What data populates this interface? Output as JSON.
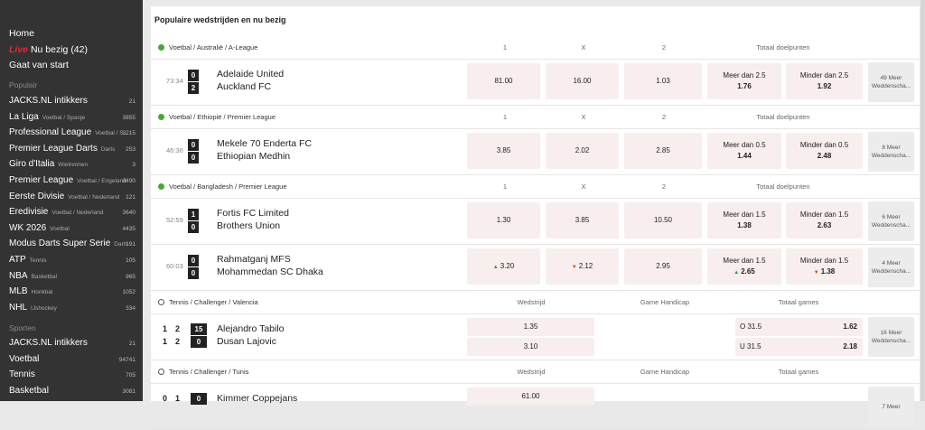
{
  "sidebar": {
    "home": "Home",
    "live": {
      "badge": "Live",
      "label": "Nu bezig",
      "count": "(42)"
    },
    "upcoming": "Gaat van start",
    "popular": {
      "title": "Populair",
      "items": [
        {
          "name": "JACKS.NL intikkers",
          "count": 21
        },
        {
          "name": "La Liga",
          "sub": "Voetbal / Spanje",
          "count": 3855
        },
        {
          "name": "Professional League",
          "sub": "Voetbal / S...",
          "count": 3215
        },
        {
          "name": "Premier League Darts",
          "sub": "Darts",
          "count": 253
        },
        {
          "name": "Giro d'Italia",
          "sub": "Wielrennen",
          "count": 3
        },
        {
          "name": "Premier League",
          "sub": "Voetbal / Engeland",
          "count": 3490
        },
        {
          "name": "Eerste Divisie",
          "sub": "Voetbal / Nederland",
          "count": 121
        },
        {
          "name": "Eredivisie",
          "sub": "Voetbal / Nederland",
          "count": 3640
        },
        {
          "name": "WK 2026",
          "sub": "Voetbal",
          "count": 4435
        },
        {
          "name": "Modus Darts Super Serie",
          "sub": "Darts",
          "count": 191
        },
        {
          "name": "ATP",
          "sub": "Tennis",
          "count": 105
        },
        {
          "name": "NBA",
          "sub": "Basketbal",
          "count": 965
        },
        {
          "name": "MLB",
          "sub": "Honkbal",
          "count": 1052
        },
        {
          "name": "NHL",
          "sub": "IJshockey",
          "count": 334
        }
      ]
    },
    "sports": {
      "title": "Sporten",
      "items": [
        {
          "name": "JACKS.NL intikkers",
          "count": 21
        },
        {
          "name": "Voetbal",
          "count": 94741
        },
        {
          "name": "Tennis",
          "count": 705
        },
        {
          "name": "Basketbal",
          "count": 3081
        }
      ]
    }
  },
  "main": {
    "title": "Populaire wedstrijden en nu bezig",
    "groups": [
      {
        "path": "Voetbal / Australië / A-League",
        "columns": [
          "1",
          "X",
          "2",
          "Totaal doelpunten"
        ],
        "events": [
          {
            "time": "73:34",
            "score": [
              0,
              2
            ],
            "teams": [
              "Adelaide United",
              "Auckland FC"
            ],
            "odds": [
              {
                "odd": "81.00"
              },
              {
                "odd": "16.00"
              },
              {
                "odd": "1.03"
              }
            ],
            "totals": [
              {
                "label": "Meer dan 2.5",
                "odd": "1.76"
              },
              {
                "label": "Minder dan 2.5",
                "odd": "1.92"
              }
            ],
            "more": "49 Meer Weddenscha..."
          }
        ]
      },
      {
        "path": "Voetbal / Ethiopië / Premier League",
        "columns": [
          "1",
          "X",
          "2",
          "Totaal doelpunten"
        ],
        "events": [
          {
            "time": "46:36",
            "score": [
              0,
              0
            ],
            "teams": [
              "Mekele 70 Enderta FC",
              "Ethiopian Medhin"
            ],
            "odds": [
              {
                "odd": "3.85"
              },
              {
                "odd": "2.02"
              },
              {
                "odd": "2.85"
              }
            ],
            "totals": [
              {
                "label": "Meer dan 0.5",
                "odd": "1.44"
              },
              {
                "label": "Minder dan 0.5",
                "odd": "2.48"
              }
            ],
            "more": "8 Meer Weddenscha..."
          }
        ]
      },
      {
        "path": "Voetbal / Bangladesh / Premier League",
        "columns": [
          "1",
          "X",
          "2",
          "Totaal doelpunten"
        ],
        "events": [
          {
            "time": "52:59",
            "score": [
              1,
              0
            ],
            "teams": [
              "Fortis FC Limited",
              "Brothers Union"
            ],
            "odds": [
              {
                "odd": "1.30"
              },
              {
                "odd": "3.85"
              },
              {
                "odd": "10.50"
              }
            ],
            "totals": [
              {
                "label": "Meer dan 1.5",
                "odd": "1.38"
              },
              {
                "label": "Minder dan 1.5",
                "odd": "2.63"
              }
            ],
            "more": "6 Meer Weddenscha..."
          },
          {
            "time": "60:03",
            "score": [
              0,
              0
            ],
            "teams": [
              "Rahmatganj MFS",
              "Mohammedan SC Dhaka"
            ],
            "odds": [
              {
                "odd": "3.20",
                "trend": "up"
              },
              {
                "odd": "2.12",
                "trend": "down"
              },
              {
                "odd": "2.95"
              }
            ],
            "totals": [
              {
                "label": "Meer dan 1.5",
                "odd": "2.65",
                "trend": "up"
              },
              {
                "label": "Minder dan 1.5",
                "odd": "1.38",
                "trend": "down"
              }
            ],
            "more": "4 Meer Weddenscha..."
          }
        ]
      },
      {
        "path": "Tennis / Challenger / Valencia",
        "columns": [
          "Wedstrijd",
          "Game Handicap",
          "Totaal games"
        ],
        "events": [
          {
            "players": [
              {
                "sets": [
                  1,
                  2
                ],
                "game": 15,
                "name": "Alejandro Tabilo",
                "odd": "1.35"
              },
              {
                "sets": [
                  1,
                  2
                ],
                "game": 0,
                "name": "Dusan Lajovic",
                "odd": "3.10"
              }
            ],
            "totals": [
              {
                "label": "O 31.5",
                "odd": "1.62"
              },
              {
                "label": "U 31.5",
                "odd": "2.18"
              }
            ],
            "more": "16 Meer Weddenscha..."
          }
        ]
      },
      {
        "path": "Tennis / Challenger / Tunis",
        "columns": [
          "Wedstrijd",
          "Game Handicap",
          "Totaal games"
        ],
        "events": [
          {
            "players": [
              {
                "sets": [
                  0,
                  1
                ],
                "game": 0,
                "name": "Kimmer Coppejans",
                "odd": "61.00"
              }
            ],
            "more": "7 Meer"
          }
        ]
      }
    ]
  }
}
